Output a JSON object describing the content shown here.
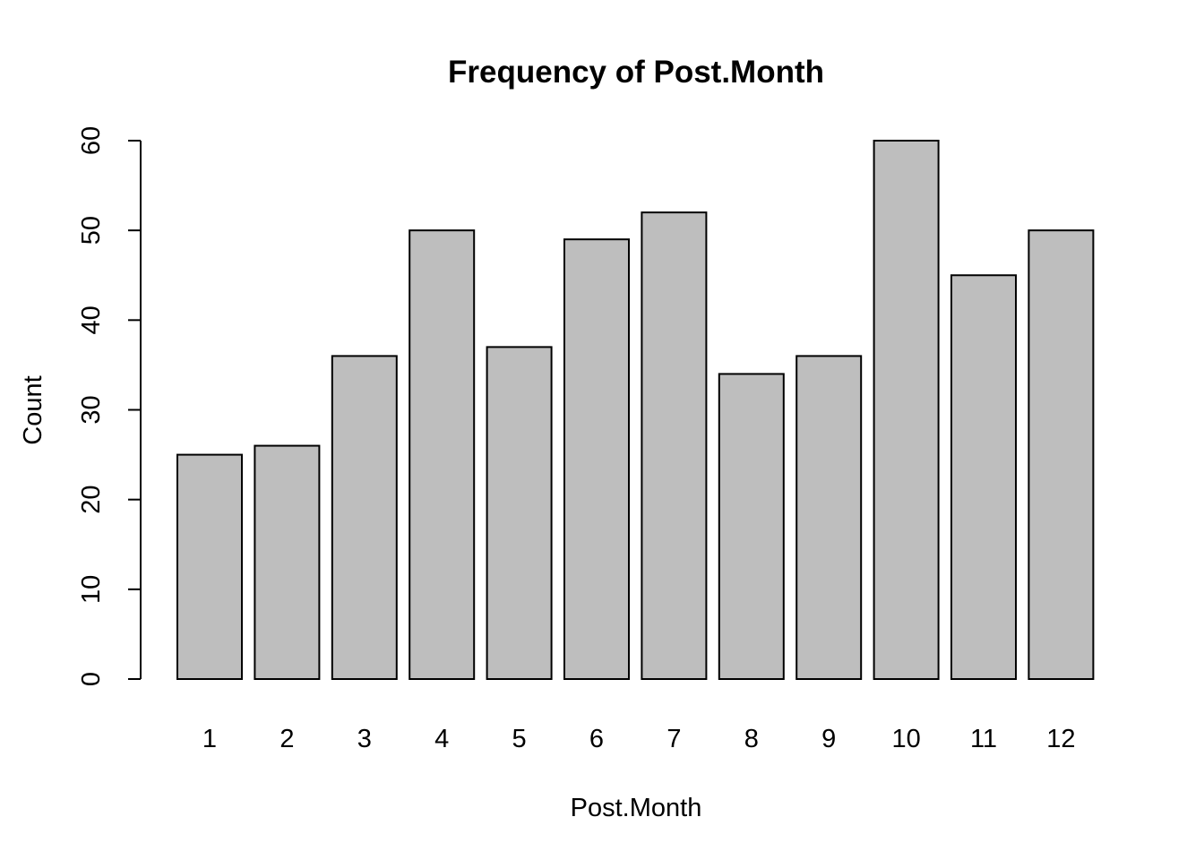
{
  "chart_data": {
    "type": "bar",
    "title": "Frequency of Post.Month",
    "xlabel": "Post.Month",
    "ylabel": "Count",
    "categories": [
      "1",
      "2",
      "3",
      "4",
      "5",
      "6",
      "7",
      "8",
      "9",
      "10",
      "11",
      "12"
    ],
    "values": [
      25,
      26,
      36,
      50,
      37,
      49,
      52,
      34,
      36,
      60,
      45,
      50
    ],
    "ylim": [
      0,
      60
    ],
    "yticks": [
      "0",
      "10",
      "20",
      "30",
      "40",
      "50",
      "60"
    ],
    "grid": false,
    "legend": "none",
    "bar_color": "#bebebe",
    "bar_border_color": "#000000"
  }
}
